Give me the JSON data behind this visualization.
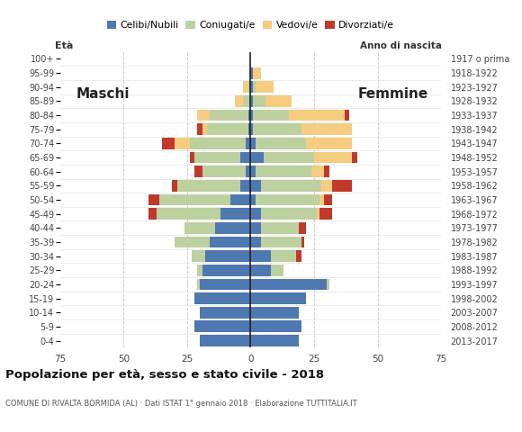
{
  "age_groups": [
    "0-4",
    "5-9",
    "10-14",
    "15-19",
    "20-24",
    "25-29",
    "30-34",
    "35-39",
    "40-44",
    "45-49",
    "50-54",
    "55-59",
    "60-64",
    "65-69",
    "70-74",
    "75-79",
    "80-84",
    "85-89",
    "90-94",
    "95-99",
    "100+"
  ],
  "birth_years": [
    "2013-2017",
    "2008-2012",
    "2003-2007",
    "1998-2002",
    "1993-1997",
    "1988-1992",
    "1983-1987",
    "1978-1982",
    "1973-1977",
    "1968-1972",
    "1963-1967",
    "1958-1962",
    "1953-1957",
    "1948-1952",
    "1943-1947",
    "1938-1942",
    "1933-1937",
    "1928-1932",
    "1923-1927",
    "1918-1922",
    "1917 o prima"
  ],
  "colors": {
    "celibi": "#4e78b0",
    "coniugati": "#bdd09f",
    "vedovi": "#f5cc80",
    "divorziati": "#c0392b"
  },
  "males": {
    "celibi": [
      20,
      22,
      20,
      22,
      20,
      19,
      18,
      16,
      14,
      12,
      8,
      4,
      2,
      4,
      2,
      1,
      1,
      0,
      0,
      0,
      0
    ],
    "coniugati": [
      0,
      0,
      0,
      0,
      1,
      2,
      5,
      14,
      12,
      25,
      28,
      25,
      17,
      18,
      22,
      16,
      15,
      3,
      1,
      0,
      0
    ],
    "vedovi": [
      0,
      0,
      0,
      0,
      0,
      0,
      0,
      0,
      0,
      0,
      0,
      0,
      0,
      0,
      6,
      2,
      5,
      3,
      2,
      0,
      0
    ],
    "divorziati": [
      0,
      0,
      0,
      0,
      0,
      0,
      0,
      0,
      0,
      3,
      4,
      2,
      3,
      2,
      5,
      2,
      0,
      0,
      0,
      0,
      0
    ]
  },
  "females": {
    "nubili": [
      19,
      20,
      19,
      22,
      30,
      8,
      8,
      4,
      4,
      4,
      2,
      4,
      2,
      5,
      2,
      1,
      1,
      1,
      1,
      1,
      0
    ],
    "coniugate": [
      0,
      0,
      0,
      0,
      1,
      5,
      10,
      16,
      15,
      22,
      25,
      24,
      22,
      20,
      20,
      19,
      14,
      5,
      1,
      0,
      0
    ],
    "vedove": [
      0,
      0,
      0,
      0,
      0,
      0,
      0,
      0,
      0,
      1,
      2,
      4,
      5,
      15,
      18,
      20,
      22,
      10,
      7,
      3,
      0
    ],
    "divorziate": [
      0,
      0,
      0,
      0,
      0,
      0,
      2,
      1,
      3,
      5,
      3,
      8,
      2,
      2,
      0,
      0,
      2,
      0,
      0,
      0,
      0
    ]
  },
  "xlim": 75,
  "title": "Popolazione per età, sesso e stato civile - 2018",
  "subtitle": "COMUNE DI RIVALTA BORMIDA (AL) · Dati ISTAT 1° gennaio 2018 · Elaborazione TUTTITALIA.IT",
  "maschi_label": "Maschi",
  "femmine_label": "Femmine",
  "eta_label": "Età",
  "anno_label": "Anno di nascita",
  "legend_labels": [
    "Celibi/Nubili",
    "Coniugati/e",
    "Vedovi/e",
    "Divorziati/e"
  ],
  "bg_color": "#ffffff",
  "bar_height": 0.82
}
